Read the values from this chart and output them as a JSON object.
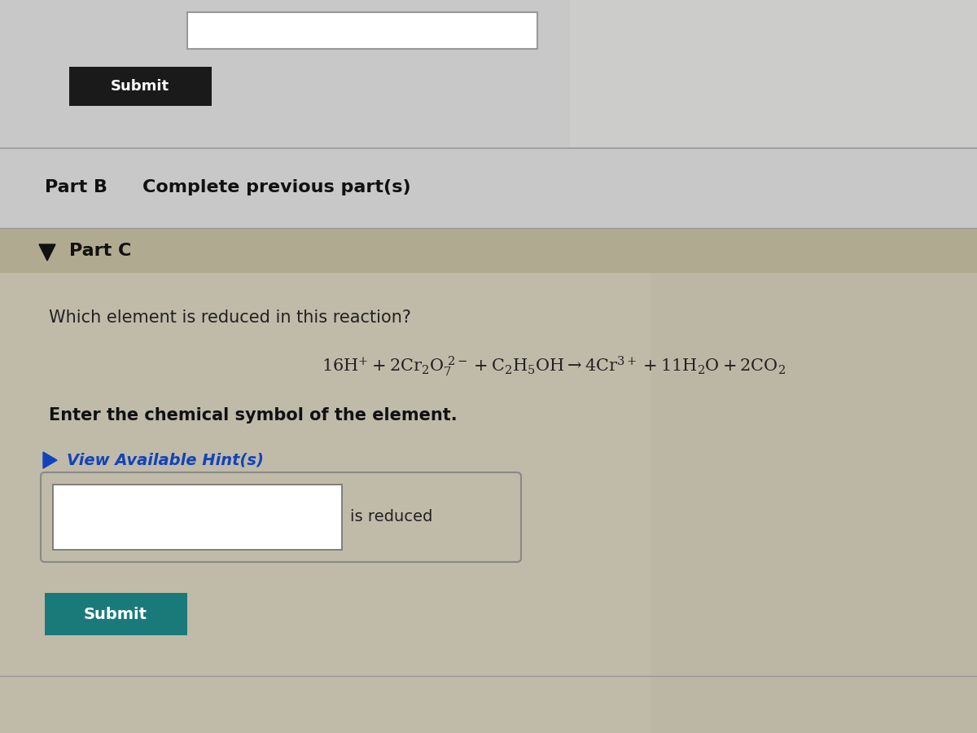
{
  "bg_top": "#c8c8c8",
  "bg_middle": "#c8c8c8",
  "bg_content": "#c0baa8",
  "part_b_text": "Part B",
  "part_b_subtext": "Complete previous part(s)",
  "part_c_text": "Part C",
  "part_c_bg": "#b0aa90",
  "question_text": "Which element is reduced in this reaction?",
  "instruction_text": "Enter the chemical symbol of the element.",
  "hint_text": "View Available Hint(s)",
  "hint_color": "#1144bb",
  "is_reduced_text": "is reduced",
  "submit_color_top": "#1a1a1a",
  "submit_color_bottom": "#1a7a7a",
  "submit_text": "Submit",
  "divider_color": "#999999",
  "text_color_dark": "#222222",
  "text_color_bold": "#111111",
  "input_outer_border": "#888888",
  "input_inner_border": "#888888",
  "gradient_right_color": "#b8b8a0"
}
